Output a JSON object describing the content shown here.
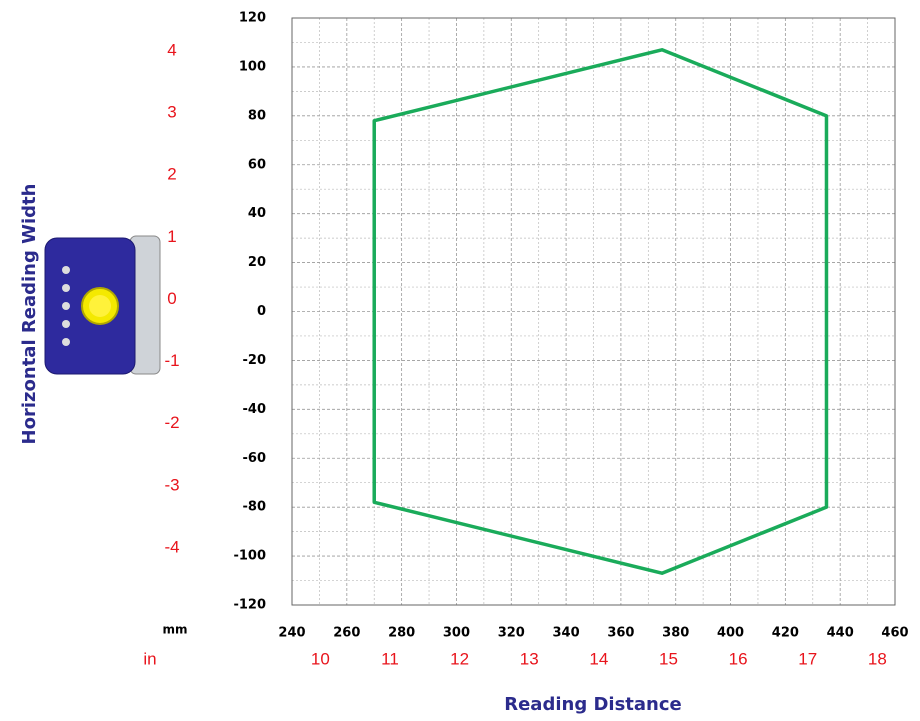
{
  "chart_data": {
    "type": "line",
    "closed": true,
    "xlabel": "Reading Distance",
    "ylabel": "Horizontal Reading Width",
    "x_unit": "mm",
    "x2_unit": "in",
    "x": [
      270,
      375,
      435,
      435,
      375,
      270
    ],
    "series": [
      {
        "color": "#1aab5a",
        "values": [
          78,
          107,
          80,
          -80,
          -107,
          -78
        ]
      }
    ],
    "xlim": [
      240,
      460
    ],
    "xticks": [
      240,
      260,
      280,
      300,
      320,
      340,
      360,
      380,
      400,
      420,
      440,
      460
    ],
    "ylim": [
      -120,
      120
    ],
    "yticks": [
      -120,
      -100,
      -80,
      -60,
      -40,
      -20,
      0,
      20,
      40,
      60,
      80,
      100,
      120
    ],
    "x2lim": [
      9.449,
      18.11
    ],
    "x2ticks": [
      10,
      11,
      12,
      13,
      14,
      15,
      16,
      17,
      18
    ],
    "y2lim": [
      -4.724,
      4.724
    ],
    "y2ticks": [
      4,
      3,
      2,
      1,
      0,
      -1,
      -2,
      -3,
      -4
    ],
    "grid": true,
    "minor_grid": true
  }
}
